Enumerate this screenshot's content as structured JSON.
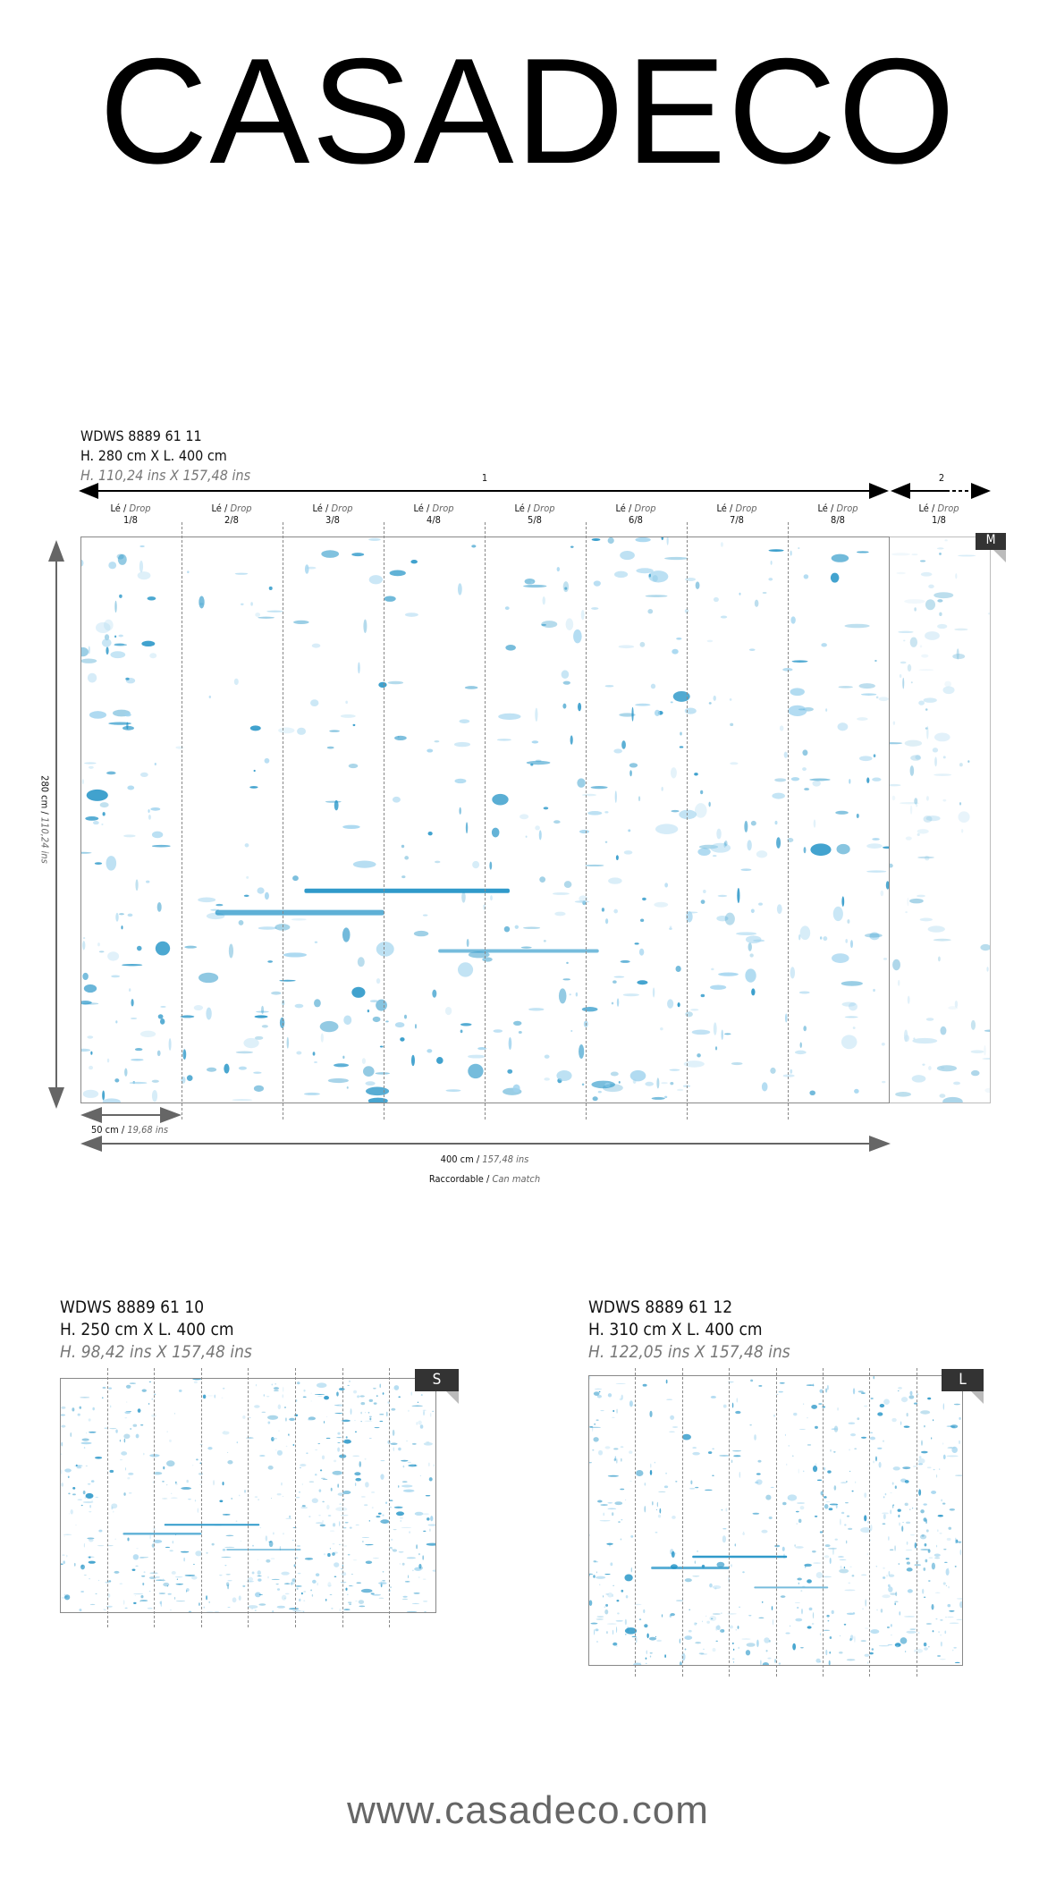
{
  "brand": "CASADECO",
  "main": {
    "ref": "WDWS 8889 61 11",
    "dims_cm": "H. 280 cm X L. 400 cm",
    "dims_ins": "H. 110,24 ins X 157,48 ins",
    "repeat_labels": [
      "1",
      "2"
    ],
    "drop_word": "Lé",
    "drop_sep": " / ",
    "drop_word_en": "Drop",
    "drops": [
      "1/8",
      "2/8",
      "3/8",
      "4/8",
      "5/8",
      "6/8",
      "7/8",
      "8/8",
      "1/8"
    ],
    "size_badge": "M",
    "height_cm": "280 cm",
    "height_ins": "110,24 ins",
    "width_drop_cm": "50 cm",
    "width_drop_ins": "19,68 ins",
    "width_total_cm": "400 cm",
    "width_total_ins": "157,48 ins",
    "match": "Raccordable",
    "match_en": "Can match"
  },
  "variants": [
    {
      "ref": "WDWS 8889 61 10",
      "dims_cm": "H. 250 cm X L. 400 cm",
      "dims_ins": "H. 98,42 ins X 157,48 ins",
      "size_badge": "S"
    },
    {
      "ref": "WDWS 8889 61 12",
      "dims_cm": "H. 310 cm X L. 400 cm",
      "dims_ins": "H. 122,05 ins X 157,48 ins",
      "size_badge": "L"
    }
  ],
  "website": "www.casadeco.com",
  "colors": {
    "pattern_blue": "#1a8fc4",
    "light_blue": "#9fd3ee"
  }
}
